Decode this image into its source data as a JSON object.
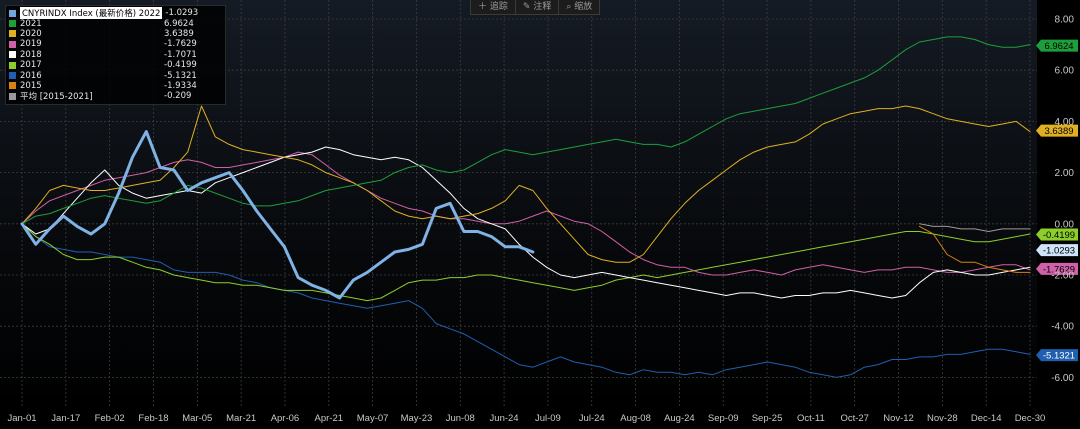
{
  "toolbar": {
    "items": [
      {
        "icon": "plus-icon",
        "glyph": "＋",
        "label": "追踪"
      },
      {
        "icon": "note-icon",
        "glyph": "✎",
        "label": "注释"
      },
      {
        "icon": "zoom-icon",
        "glyph": "⌕",
        "label": "缩放"
      }
    ]
  },
  "legend": {
    "header": {
      "name": "CNYRINDX Index (最新价格) 2022",
      "value": "-1.0293",
      "color": "#6fa8dc"
    },
    "rows": [
      {
        "name": "2021",
        "value": "6.9624",
        "color": "#1e9e3a"
      },
      {
        "name": "2020",
        "value": "3.6389",
        "color": "#e0b020"
      },
      {
        "name": "2019",
        "value": "-1.7629",
        "color": "#d060a8"
      },
      {
        "name": "2018",
        "value": "-1.7071",
        "color": "#ffffff"
      },
      {
        "name": "2017",
        "value": "-0.4199",
        "color": "#8ccf2a"
      },
      {
        "name": "2016",
        "value": "-5.1321",
        "color": "#1f5fb0"
      },
      {
        "name": "2015",
        "value": "-1.9334",
        "color": "#d9820f"
      },
      {
        "name": "平均 [2015-2021]",
        "value": "-0.209",
        "color": "#9a9a9a"
      }
    ]
  },
  "chart_data": {
    "type": "line",
    "ylim": [
      -7.2,
      8.8
    ],
    "y_ticks": [
      8,
      6,
      4,
      2,
      0,
      -2,
      -4,
      -6
    ],
    "y_tick_labels": [
      "8.00",
      "6.00",
      "4.00",
      "2.00",
      "0.00",
      "-2.00",
      "-4.00",
      "-6.00"
    ],
    "x_tick_labels": [
      "Jan-01",
      "Jan-17",
      "Feb-02",
      "Feb-18",
      "Mar-05",
      "Mar-21",
      "Apr-06",
      "Apr-21",
      "May-07",
      "May-23",
      "Jun-08",
      "Jun-24",
      "Jul-09",
      "Jul-24",
      "Aug-08",
      "Aug-24",
      "Sep-09",
      "Sep-25",
      "Oct-11",
      "Oct-27",
      "Nov-12",
      "Nov-28",
      "Dec-14",
      "Dec-30"
    ],
    "grid": true,
    "legend_position": "top-left",
    "series": [
      {
        "name": "2016",
        "color": "#1f5fb0",
        "width": 1,
        "label": "-5.1321",
        "values": [
          0,
          -0.5,
          -0.9,
          -1.0,
          -1.1,
          -1.1,
          -1.2,
          -1.3,
          -1.3,
          -1.4,
          -1.5,
          -1.8,
          -1.9,
          -1.9,
          -1.9,
          -2.0,
          -2.2,
          -2.3,
          -2.5,
          -2.6,
          -2.7,
          -2.9,
          -3.0,
          -3.1,
          -3.2,
          -3.3,
          -3.2,
          -3.1,
          -3.0,
          -3.3,
          -3.9,
          -4.1,
          -4.3,
          -4.6,
          -4.9,
          -5.2,
          -5.5,
          -5.6,
          -5.4,
          -5.2,
          -5.4,
          -5.5,
          -5.6,
          -5.8,
          -5.9,
          -5.7,
          -5.8,
          -5.8,
          -5.9,
          -5.8,
          -5.9,
          -5.7,
          -5.6,
          -5.5,
          -5.4,
          -5.5,
          -5.6,
          -5.8,
          -5.9,
          -6.0,
          -5.9,
          -5.6,
          -5.5,
          -5.3,
          -5.3,
          -5.2,
          -5.2,
          -5.1,
          -5.1,
          -5.0,
          -4.9,
          -4.9,
          -5.0,
          -5.1
        ]
      },
      {
        "name": "2017",
        "color": "#8ccf2a",
        "width": 1,
        "label": "-0.4199",
        "values": [
          0,
          -0.5,
          -0.8,
          -1.2,
          -1.4,
          -1.4,
          -1.3,
          -1.3,
          -1.5,
          -1.7,
          -1.8,
          -2.0,
          -2.1,
          -2.2,
          -2.3,
          -2.3,
          -2.4,
          -2.4,
          -2.5,
          -2.6,
          -2.6,
          -2.6,
          -2.7,
          -2.8,
          -2.9,
          -3.0,
          -2.9,
          -2.6,
          -2.3,
          -2.2,
          -2.2,
          -2.1,
          -2.1,
          -2.0,
          -2.0,
          -2.1,
          -2.2,
          -2.3,
          -2.4,
          -2.5,
          -2.6,
          -2.5,
          -2.4,
          -2.2,
          -2.1,
          -2.0,
          -2.1,
          -2.0,
          -1.9,
          -1.8,
          -1.7,
          -1.6,
          -1.5,
          -1.4,
          -1.3,
          -1.2,
          -1.1,
          -1.0,
          -0.9,
          -0.8,
          -0.7,
          -0.6,
          -0.5,
          -0.4,
          -0.3,
          -0.3,
          -0.4,
          -0.5,
          -0.6,
          -0.7,
          -0.7,
          -0.6,
          -0.5,
          -0.4
        ]
      },
      {
        "name": "2019",
        "color": "#d060a8",
        "width": 1,
        "label": "-1.7629",
        "values": [
          0,
          0.5,
          0.9,
          1.1,
          1.3,
          1.5,
          1.7,
          1.8,
          1.9,
          2.0,
          2.2,
          2.4,
          2.5,
          2.4,
          2.2,
          2.2,
          2.3,
          2.4,
          2.5,
          2.6,
          2.8,
          2.7,
          2.3,
          1.9,
          1.6,
          1.3,
          1.0,
          0.8,
          0.6,
          0.5,
          0.3,
          0.2,
          0.2,
          0.1,
          0.0,
          0.0,
          0.1,
          0.3,
          0.5,
          0.3,
          0.1,
          0.0,
          -0.3,
          -0.7,
          -1.1,
          -1.4,
          -1.6,
          -1.7,
          -1.7,
          -1.9,
          -2.0,
          -2.0,
          -1.9,
          -1.8,
          -1.9,
          -2.0,
          -1.8,
          -1.7,
          -1.6,
          -1.7,
          -1.8,
          -1.9,
          -1.8,
          -1.8,
          -1.7,
          -1.7,
          -1.8,
          -1.9,
          -1.9,
          -1.8,
          -1.7,
          -1.6,
          -1.6,
          -1.8
        ]
      },
      {
        "name": "2018",
        "color": "#ffffff",
        "width": 1,
        "label": "",
        "values": [
          0,
          -0.4,
          -0.2,
          0.4,
          1.0,
          1.6,
          2.1,
          1.5,
          1.2,
          1.0,
          1.1,
          1.2,
          1.3,
          1.2,
          1.6,
          1.8,
          2.0,
          2.2,
          2.4,
          2.6,
          2.7,
          2.8,
          3.0,
          2.9,
          2.7,
          2.6,
          2.5,
          2.6,
          2.5,
          2.2,
          1.7,
          1.2,
          0.6,
          0.2,
          0.0,
          -0.2,
          -0.8,
          -1.3,
          -1.7,
          -2.0,
          -2.1,
          -2.0,
          -1.9,
          -2.0,
          -2.1,
          -2.2,
          -2.3,
          -2.4,
          -2.5,
          -2.6,
          -2.7,
          -2.8,
          -2.7,
          -2.7,
          -2.8,
          -2.9,
          -2.8,
          -2.8,
          -2.7,
          -2.7,
          -2.6,
          -2.7,
          -2.8,
          -2.9,
          -2.8,
          -2.3,
          -1.9,
          -1.8,
          -1.9,
          -2.0,
          -2.0,
          -1.9,
          -1.8,
          -1.7
        ]
      },
      {
        "name": "2015",
        "color": "#d9820f",
        "width": 1,
        "label": "",
        "values": [
          null,
          null,
          null,
          null,
          null,
          null,
          null,
          null,
          null,
          null,
          null,
          null,
          null,
          null,
          null,
          null,
          null,
          null,
          null,
          null,
          null,
          null,
          null,
          null,
          null,
          null,
          null,
          null,
          null,
          null,
          null,
          null,
          null,
          null,
          null,
          null,
          null,
          null,
          null,
          null,
          null,
          null,
          null,
          null,
          null,
          null,
          null,
          null,
          null,
          null,
          null,
          null,
          null,
          null,
          null,
          null,
          null,
          null,
          null,
          null,
          null,
          null,
          null,
          null,
          null,
          -0.1,
          -0.4,
          -1.2,
          -1.5,
          -1.5,
          -1.7,
          -1.8,
          -1.9,
          -1.9
        ]
      },
      {
        "name": "平均 [2015-2021]",
        "color": "#9a9a9a",
        "width": 1,
        "label": "",
        "values": [
          null,
          null,
          null,
          null,
          null,
          null,
          null,
          null,
          null,
          null,
          null,
          null,
          null,
          null,
          null,
          null,
          null,
          null,
          null,
          null,
          null,
          null,
          null,
          null,
          null,
          null,
          null,
          null,
          null,
          null,
          null,
          null,
          null,
          null,
          null,
          null,
          null,
          null,
          null,
          null,
          null,
          null,
          null,
          null,
          null,
          null,
          null,
          null,
          null,
          null,
          null,
          null,
          null,
          null,
          null,
          null,
          null,
          null,
          null,
          null,
          null,
          null,
          null,
          null,
          null,
          0.0,
          -0.1,
          -0.1,
          -0.2,
          -0.2,
          -0.3,
          -0.2,
          -0.2,
          -0.2
        ]
      },
      {
        "name": "2020",
        "color": "#e0b020",
        "width": 1,
        "label": "3.6389",
        "values": [
          0,
          0.6,
          1.3,
          1.5,
          1.4,
          1.3,
          1.3,
          1.4,
          1.5,
          1.6,
          1.7,
          2.2,
          2.8,
          4.6,
          3.4,
          3.1,
          2.9,
          2.8,
          2.7,
          2.6,
          2.5,
          2.3,
          2.0,
          1.8,
          1.6,
          1.3,
          0.9,
          0.5,
          0.3,
          0.2,
          0.3,
          0.2,
          0.3,
          0.4,
          0.6,
          0.9,
          1.5,
          1.3,
          0.6,
          0.0,
          -0.6,
          -1.2,
          -1.4,
          -1.5,
          -1.5,
          -1.2,
          -0.5,
          0.2,
          0.8,
          1.3,
          1.7,
          2.1,
          2.5,
          2.8,
          3.0,
          3.1,
          3.2,
          3.5,
          3.9,
          4.1,
          4.3,
          4.4,
          4.5,
          4.5,
          4.6,
          4.5,
          4.3,
          4.1,
          4.0,
          3.9,
          3.8,
          3.9,
          4.0,
          3.6
        ]
      },
      {
        "name": "2021",
        "color": "#1e9e3a",
        "width": 1,
        "label": "6.9624",
        "values": [
          0,
          0.3,
          0.4,
          0.6,
          0.8,
          1.0,
          1.1,
          1.0,
          0.9,
          0.8,
          0.9,
          1.2,
          1.5,
          1.4,
          1.2,
          1.0,
          0.8,
          0.7,
          0.7,
          0.8,
          0.9,
          1.1,
          1.3,
          1.4,
          1.5,
          1.6,
          1.7,
          2.0,
          2.2,
          2.3,
          2.1,
          2.0,
          2.1,
          2.4,
          2.7,
          2.9,
          2.8,
          2.7,
          2.8,
          2.9,
          3.0,
          3.1,
          3.2,
          3.3,
          3.2,
          3.1,
          3.1,
          3.0,
          3.2,
          3.5,
          3.8,
          4.1,
          4.3,
          4.4,
          4.5,
          4.6,
          4.7,
          4.9,
          5.1,
          5.3,
          5.5,
          5.7,
          6.0,
          6.4,
          6.8,
          7.1,
          7.2,
          7.3,
          7.3,
          7.2,
          7.0,
          6.9,
          6.9,
          7.0
        ]
      },
      {
        "name": "CNYRINDX Index (最新价格) 2022",
        "color": "#7fb2e5",
        "width": 3,
        "label": "-1.0293",
        "values": [
          0,
          -0.8,
          -0.2,
          0.3,
          -0.1,
          -0.4,
          0.0,
          1.2,
          2.6,
          3.6,
          2.2,
          2.1,
          1.3,
          1.6,
          1.8,
          2.0,
          1.3,
          0.5,
          -0.2,
          -0.9,
          -2.1,
          -2.4,
          -2.6,
          -2.9,
          -2.2,
          -1.9,
          -1.5,
          -1.1,
          -1.0,
          -0.8,
          0.6,
          0.8,
          -0.3,
          -0.3,
          -0.5,
          -0.9,
          -0.9,
          -1.1
        ]
      }
    ]
  }
}
